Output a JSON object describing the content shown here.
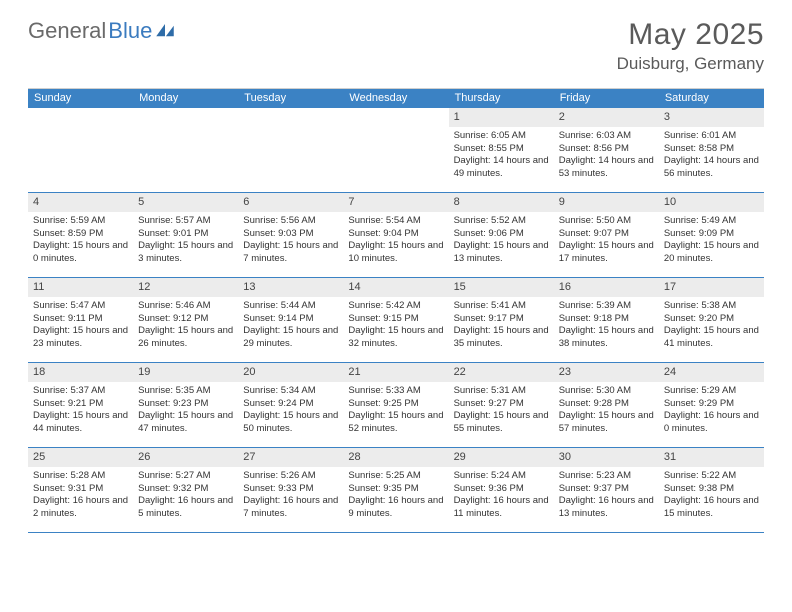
{
  "logo": {
    "text1": "General",
    "text2": "Blue"
  },
  "title": "May 2025",
  "location": "Duisburg, Germany",
  "colors": {
    "header_bg": "#3b82c4",
    "header_text": "#ffffff",
    "daynum_bg": "#ececec",
    "text": "#333333",
    "border": "#3b82c4",
    "logo_accent": "#3b7bbf"
  },
  "weekdays": [
    "Sunday",
    "Monday",
    "Tuesday",
    "Wednesday",
    "Thursday",
    "Friday",
    "Saturday"
  ],
  "weeks": [
    [
      null,
      null,
      null,
      null,
      {
        "n": "1",
        "sr": "6:05 AM",
        "ss": "8:55 PM",
        "dl": "14 hours and 49 minutes."
      },
      {
        "n": "2",
        "sr": "6:03 AM",
        "ss": "8:56 PM",
        "dl": "14 hours and 53 minutes."
      },
      {
        "n": "3",
        "sr": "6:01 AM",
        "ss": "8:58 PM",
        "dl": "14 hours and 56 minutes."
      }
    ],
    [
      {
        "n": "4",
        "sr": "5:59 AM",
        "ss": "8:59 PM",
        "dl": "15 hours and 0 minutes."
      },
      {
        "n": "5",
        "sr": "5:57 AM",
        "ss": "9:01 PM",
        "dl": "15 hours and 3 minutes."
      },
      {
        "n": "6",
        "sr": "5:56 AM",
        "ss": "9:03 PM",
        "dl": "15 hours and 7 minutes."
      },
      {
        "n": "7",
        "sr": "5:54 AM",
        "ss": "9:04 PM",
        "dl": "15 hours and 10 minutes."
      },
      {
        "n": "8",
        "sr": "5:52 AM",
        "ss": "9:06 PM",
        "dl": "15 hours and 13 minutes."
      },
      {
        "n": "9",
        "sr": "5:50 AM",
        "ss": "9:07 PM",
        "dl": "15 hours and 17 minutes."
      },
      {
        "n": "10",
        "sr": "5:49 AM",
        "ss": "9:09 PM",
        "dl": "15 hours and 20 minutes."
      }
    ],
    [
      {
        "n": "11",
        "sr": "5:47 AM",
        "ss": "9:11 PM",
        "dl": "15 hours and 23 minutes."
      },
      {
        "n": "12",
        "sr": "5:46 AM",
        "ss": "9:12 PM",
        "dl": "15 hours and 26 minutes."
      },
      {
        "n": "13",
        "sr": "5:44 AM",
        "ss": "9:14 PM",
        "dl": "15 hours and 29 minutes."
      },
      {
        "n": "14",
        "sr": "5:42 AM",
        "ss": "9:15 PM",
        "dl": "15 hours and 32 minutes."
      },
      {
        "n": "15",
        "sr": "5:41 AM",
        "ss": "9:17 PM",
        "dl": "15 hours and 35 minutes."
      },
      {
        "n": "16",
        "sr": "5:39 AM",
        "ss": "9:18 PM",
        "dl": "15 hours and 38 minutes."
      },
      {
        "n": "17",
        "sr": "5:38 AM",
        "ss": "9:20 PM",
        "dl": "15 hours and 41 minutes."
      }
    ],
    [
      {
        "n": "18",
        "sr": "5:37 AM",
        "ss": "9:21 PM",
        "dl": "15 hours and 44 minutes."
      },
      {
        "n": "19",
        "sr": "5:35 AM",
        "ss": "9:23 PM",
        "dl": "15 hours and 47 minutes."
      },
      {
        "n": "20",
        "sr": "5:34 AM",
        "ss": "9:24 PM",
        "dl": "15 hours and 50 minutes."
      },
      {
        "n": "21",
        "sr": "5:33 AM",
        "ss": "9:25 PM",
        "dl": "15 hours and 52 minutes."
      },
      {
        "n": "22",
        "sr": "5:31 AM",
        "ss": "9:27 PM",
        "dl": "15 hours and 55 minutes."
      },
      {
        "n": "23",
        "sr": "5:30 AM",
        "ss": "9:28 PM",
        "dl": "15 hours and 57 minutes."
      },
      {
        "n": "24",
        "sr": "5:29 AM",
        "ss": "9:29 PM",
        "dl": "16 hours and 0 minutes."
      }
    ],
    [
      {
        "n": "25",
        "sr": "5:28 AM",
        "ss": "9:31 PM",
        "dl": "16 hours and 2 minutes."
      },
      {
        "n": "26",
        "sr": "5:27 AM",
        "ss": "9:32 PM",
        "dl": "16 hours and 5 minutes."
      },
      {
        "n": "27",
        "sr": "5:26 AM",
        "ss": "9:33 PM",
        "dl": "16 hours and 7 minutes."
      },
      {
        "n": "28",
        "sr": "5:25 AM",
        "ss": "9:35 PM",
        "dl": "16 hours and 9 minutes."
      },
      {
        "n": "29",
        "sr": "5:24 AM",
        "ss": "9:36 PM",
        "dl": "16 hours and 11 minutes."
      },
      {
        "n": "30",
        "sr": "5:23 AM",
        "ss": "9:37 PM",
        "dl": "16 hours and 13 minutes."
      },
      {
        "n": "31",
        "sr": "5:22 AM",
        "ss": "9:38 PM",
        "dl": "16 hours and 15 minutes."
      }
    ]
  ],
  "labels": {
    "sunrise": "Sunrise:",
    "sunset": "Sunset:",
    "daylight": "Daylight:"
  }
}
